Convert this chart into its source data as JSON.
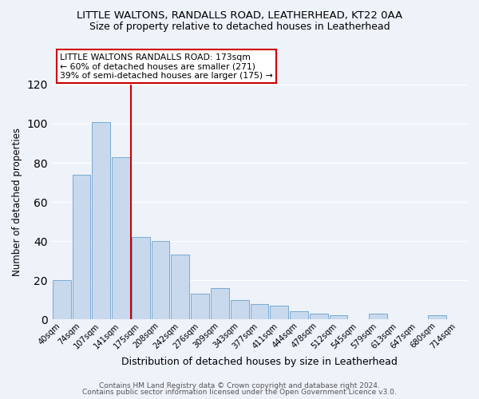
{
  "title": "LITTLE WALTONS, RANDALLS ROAD, LEATHERHEAD, KT22 0AA",
  "subtitle": "Size of property relative to detached houses in Leatherhead",
  "xlabel": "Distribution of detached houses by size in Leatherhead",
  "ylabel": "Number of detached properties",
  "bar_labels": [
    "40sqm",
    "74sqm",
    "107sqm",
    "141sqm",
    "175sqm",
    "208sqm",
    "242sqm",
    "276sqm",
    "309sqm",
    "343sqm",
    "377sqm",
    "411sqm",
    "444sqm",
    "478sqm",
    "512sqm",
    "545sqm",
    "579sqm",
    "613sqm",
    "647sqm",
    "680sqm",
    "714sqm"
  ],
  "bar_heights": [
    20,
    74,
    101,
    83,
    42,
    40,
    33,
    13,
    16,
    10,
    8,
    7,
    4,
    3,
    2,
    0,
    3,
    0,
    0,
    2,
    0
  ],
  "bar_color": "#c8d9ee",
  "bar_edge_color": "#7aaad0",
  "vline_color": "#cc0000",
  "annotation_lines": [
    "LITTLE WALTONS RANDALLS ROAD: 173sqm",
    "← 60% of detached houses are smaller (271)",
    "39% of semi-detached houses are larger (175) →"
  ],
  "ylim": [
    0,
    120
  ],
  "yticks": [
    0,
    20,
    40,
    60,
    80,
    100,
    120
  ],
  "footer1": "Contains HM Land Registry data © Crown copyright and database right 2024.",
  "footer2": "Contains public sector information licensed under the Open Government Licence v3.0.",
  "bg_color": "#eef2f9",
  "grid_color": "#ffffff",
  "figsize": [
    6.0,
    5.0
  ],
  "dpi": 100
}
